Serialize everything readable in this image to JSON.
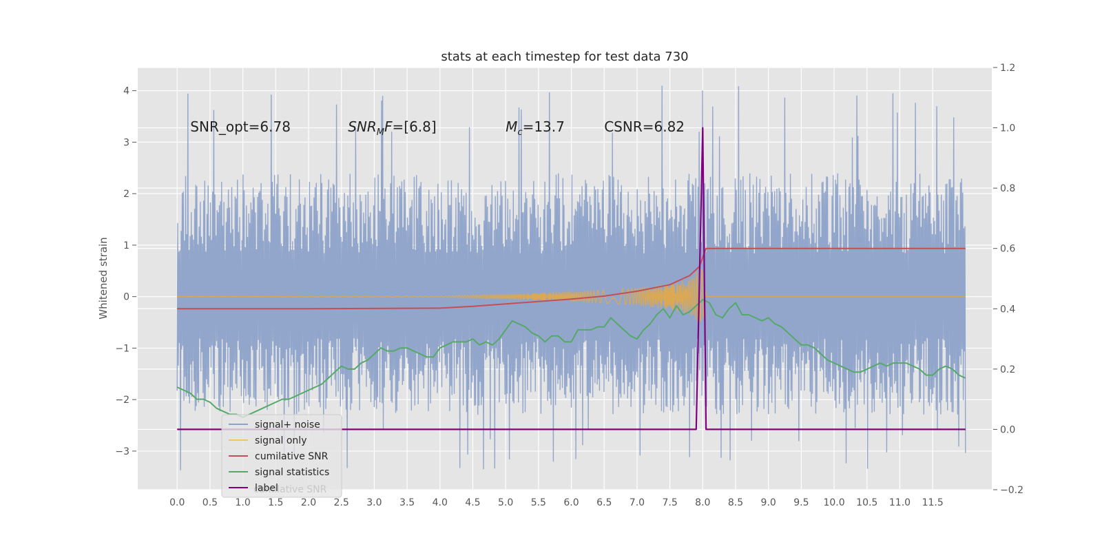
{
  "chart_data": {
    "type": "line",
    "title": "stats at each timestep for test data 730",
    "ylabel": "Whitened strain",
    "xlabel": "",
    "xlim": [
      -0.6,
      12.4
    ],
    "ylim": [
      -3.75,
      4.45
    ],
    "y2lim": [
      -0.2,
      1.2
    ],
    "grid": true,
    "x_ticks": [
      "0.0",
      "0.5",
      "1.0",
      "1.5",
      "2.0",
      "2.5",
      "3.0",
      "3.5",
      "4.0",
      "4.5",
      "5.0",
      "5.5",
      "6.0",
      "6.5",
      "7.0",
      "7.5",
      "8.0",
      "8.5",
      "9.0",
      "9.5",
      "10.0",
      "10.5",
      "11.0",
      "11.5"
    ],
    "y_ticks": [
      "−3",
      "−2",
      "−1",
      "0",
      "1",
      "2",
      "3",
      "4"
    ],
    "y2_ticks": [
      "−0.2",
      "0.0",
      "0.2",
      "0.4",
      "0.6",
      "0.8",
      "1.0",
      "1.2"
    ],
    "annotations": [
      {
        "x": 0.2,
        "y": 3.3,
        "text": "SNR_opt=6.78"
      },
      {
        "x": 2.6,
        "y": 3.3,
        "pre": "SNR",
        "sub": "M",
        "post": "F=[6.8]"
      },
      {
        "x": 5.0,
        "y": 3.3,
        "pre": "M",
        "sub": "c",
        "post": "=13.7"
      },
      {
        "x": 6.5,
        "y": 3.3,
        "text": "CSNR=6.82"
      }
    ],
    "legend": {
      "placement": "lower-left",
      "hidden_text": "cumilative SNR",
      "entries": [
        {
          "label": "signal+ noise",
          "color": "#8da2c9"
        },
        {
          "label": "signal only",
          "color": "#f0c75a"
        },
        {
          "label": "cumilative SNR",
          "color": "#c44e52"
        },
        {
          "label": "signal statistics",
          "color": "#55a868"
        },
        {
          "label": "label",
          "color": "#800080"
        }
      ]
    },
    "series": [
      {
        "name": "signal+ noise",
        "axis": "left",
        "color": "#8da2c9",
        "x_range": [
          0.0,
          12.0
        ],
        "envelope": {
          "upper": 2.4,
          "lower": -2.3,
          "peak_max": 4.1,
          "peak_min": -3.4
        }
      },
      {
        "name": "signal only",
        "axis": "left",
        "color": "#e8a83e",
        "x": [
          0.0,
          4.0,
          5.0,
          6.0,
          6.5,
          7.0,
          7.5,
          7.8,
          8.0,
          8.05,
          12.0
        ],
        "amplitude": [
          0.0,
          0.01,
          0.05,
          0.1,
          0.13,
          0.17,
          0.25,
          0.35,
          0.6,
          0.0,
          0.0
        ]
      },
      {
        "name": "cumilative SNR",
        "axis": "right",
        "color": "#c44e52",
        "x": [
          0.0,
          2.0,
          4.0,
          4.5,
          5.0,
          5.5,
          6.0,
          6.5,
          7.0,
          7.5,
          7.8,
          7.95,
          8.05,
          12.0
        ],
        "y": [
          0.4,
          0.4,
          0.402,
          0.408,
          0.416,
          0.424,
          0.432,
          0.442,
          0.458,
          0.48,
          0.51,
          0.54,
          0.6,
          0.6
        ]
      },
      {
        "name": "signal statistics",
        "axis": "right",
        "color": "#55a868",
        "x": [
          0.0,
          0.1,
          0.2,
          0.3,
          0.4,
          0.5,
          0.6,
          0.7,
          0.8,
          0.9,
          1.0,
          1.1,
          1.2,
          1.3,
          1.4,
          1.5,
          1.6,
          1.7,
          1.8,
          1.9,
          2.0,
          2.1,
          2.2,
          2.3,
          2.4,
          2.5,
          2.6,
          2.7,
          2.8,
          2.9,
          3.0,
          3.1,
          3.2,
          3.3,
          3.4,
          3.5,
          3.6,
          3.7,
          3.8,
          3.9,
          4.0,
          4.1,
          4.2,
          4.3,
          4.4,
          4.5,
          4.6,
          4.7,
          4.8,
          4.9,
          5.0,
          5.1,
          5.2,
          5.3,
          5.4,
          5.5,
          5.6,
          5.7,
          5.8,
          5.9,
          6.0,
          6.1,
          6.2,
          6.3,
          6.4,
          6.5,
          6.6,
          6.7,
          6.8,
          6.9,
          7.0,
          7.1,
          7.2,
          7.3,
          7.4,
          7.5,
          7.6,
          7.7,
          7.8,
          7.9,
          8.0,
          8.1,
          8.2,
          8.3,
          8.4,
          8.5,
          8.6,
          8.7,
          8.8,
          8.9,
          9.0,
          9.1,
          9.2,
          9.3,
          9.4,
          9.5,
          9.6,
          9.7,
          9.8,
          9.9,
          10.0,
          10.1,
          10.2,
          10.3,
          10.4,
          10.5,
          10.6,
          10.7,
          10.8,
          10.9,
          11.0,
          11.1,
          11.2,
          11.3,
          11.4,
          11.5,
          11.6,
          11.7,
          11.8,
          11.9,
          12.0
        ],
        "y": [
          0.14,
          0.13,
          0.12,
          0.1,
          0.1,
          0.09,
          0.07,
          0.06,
          0.05,
          0.05,
          0.04,
          0.05,
          0.06,
          0.07,
          0.08,
          0.09,
          0.1,
          0.1,
          0.11,
          0.12,
          0.13,
          0.14,
          0.15,
          0.17,
          0.19,
          0.21,
          0.2,
          0.2,
          0.22,
          0.23,
          0.25,
          0.27,
          0.26,
          0.26,
          0.27,
          0.27,
          0.26,
          0.25,
          0.24,
          0.24,
          0.27,
          0.28,
          0.29,
          0.29,
          0.29,
          0.3,
          0.28,
          0.29,
          0.28,
          0.3,
          0.33,
          0.36,
          0.35,
          0.34,
          0.32,
          0.31,
          0.29,
          0.31,
          0.31,
          0.29,
          0.29,
          0.33,
          0.33,
          0.33,
          0.34,
          0.34,
          0.37,
          0.35,
          0.33,
          0.31,
          0.3,
          0.33,
          0.35,
          0.38,
          0.4,
          0.37,
          0.41,
          0.38,
          0.39,
          0.41,
          0.43,
          0.42,
          0.38,
          0.37,
          0.4,
          0.42,
          0.38,
          0.38,
          0.37,
          0.36,
          0.37,
          0.35,
          0.34,
          0.32,
          0.3,
          0.28,
          0.28,
          0.27,
          0.25,
          0.23,
          0.22,
          0.21,
          0.2,
          0.19,
          0.19,
          0.2,
          0.21,
          0.22,
          0.21,
          0.22,
          0.22,
          0.22,
          0.21,
          0.2,
          0.18,
          0.18,
          0.2,
          0.21,
          0.2,
          0.18,
          0.17
        ]
      },
      {
        "name": "label",
        "axis": "right",
        "color": "#800080",
        "x": [
          0.0,
          7.9,
          8.0,
          8.05,
          12.0
        ],
        "y": [
          0.0,
          0.0,
          1.0,
          0.0,
          0.0
        ]
      }
    ]
  }
}
